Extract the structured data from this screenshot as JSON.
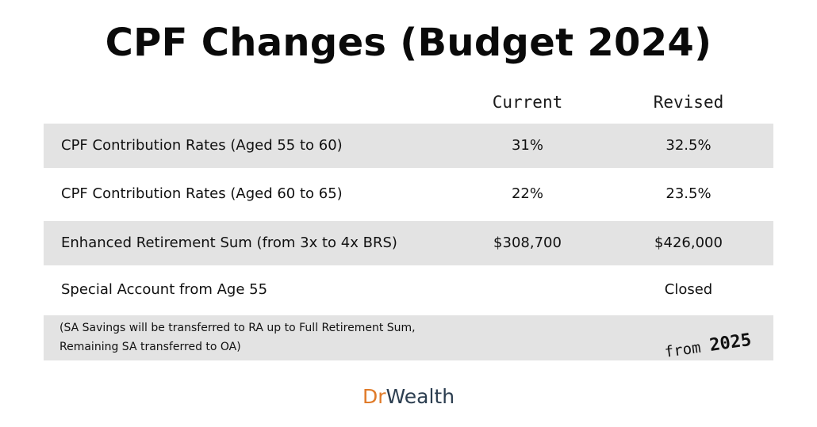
{
  "title": "CPF Changes (Budget 2024)",
  "columns": {
    "current": "Current",
    "revised": "Revised"
  },
  "rows": [
    {
      "label": "CPF Contribution Rates (Aged 55 to 60)",
      "current": "31%",
      "revised": "32.5%"
    },
    {
      "label": "CPF Contribution Rates (Aged 60 to 65)",
      "current": "22%",
      "revised": "23.5%"
    },
    {
      "label": "Enhanced Retirement Sum (from 3x to 4x BRS)",
      "current": "$308,700",
      "revised": "$426,000"
    },
    {
      "label": "Special Account from Age 55",
      "current": "",
      "revised": "Closed"
    }
  ],
  "note": {
    "line1": "(SA Savings will be transferred to RA up to Full Retirement Sum,",
    "line2": "Remaining SA transferred to OA)"
  },
  "stamp": {
    "prefix": "from",
    "year": "2025"
  },
  "brand": {
    "dr": "Dr",
    "wealth": "Wealth",
    "dr_color": "#e07b29",
    "wealth_color": "#2c3e50"
  }
}
